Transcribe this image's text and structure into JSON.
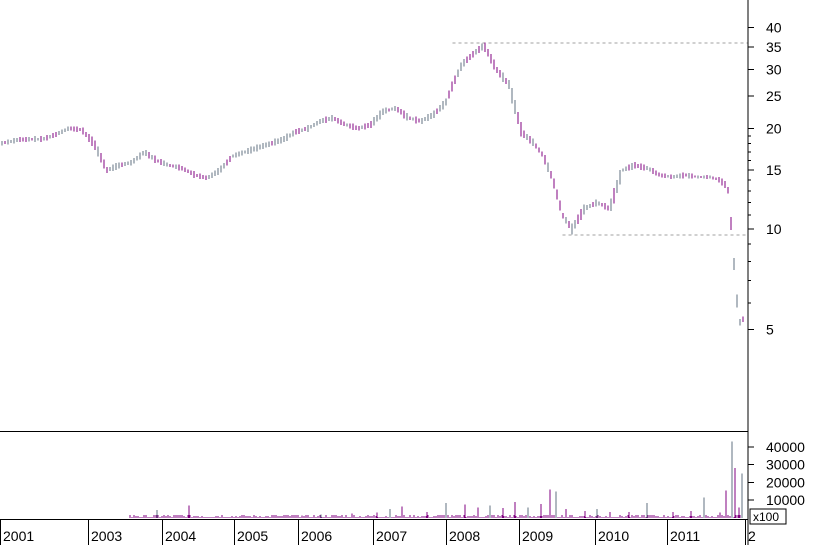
{
  "chart_data": [
    {
      "type": "line",
      "panel": "price",
      "style": "ohlc",
      "y_scale": "log",
      "ylim": [
        4.3,
        43
      ],
      "y_ticks": [
        5,
        10,
        15,
        20,
        25,
        30,
        35,
        40
      ],
      "y_tick_labels": [
        "5",
        "10",
        "15",
        "20",
        "25",
        "30",
        "35",
        "40"
      ],
      "x_tick_labels": [
        "2001",
        "2003",
        "2004",
        "2005",
        "2006",
        "2007",
        "2008",
        "2009",
        "2010",
        "2011",
        "2"
      ],
      "x": [
        2000.0,
        2000.3,
        2000.7,
        2000.9,
        2001.1,
        2001.3,
        2001.5,
        2001.7,
        2001.9,
        2002.1,
        2002.3,
        2002.5,
        2002.7,
        2002.9,
        2003.1,
        2003.3,
        2003.5,
        2003.7,
        2003.9,
        2004.1,
        2004.3,
        2004.5,
        2004.7,
        2004.9,
        2005.1,
        2005.3,
        2005.5,
        2005.7,
        2005.9,
        2006.1,
        2006.3,
        2006.5,
        2006.7,
        2006.9,
        2007.1,
        2007.2,
        2007.35,
        2007.5,
        2007.7,
        2007.9,
        2008.1,
        2008.3,
        2008.5,
        2008.65,
        2008.8,
        2008.95,
        2009.1,
        2009.3,
        2009.5,
        2009.7,
        2009.9,
        2010.1,
        2010.3,
        2010.5,
        2010.7,
        2010.9,
        2011.1,
        2011.3,
        2011.45,
        2011.55,
        2011.6,
        2011.65,
        2011.7,
        2011.75,
        2011.8,
        2011.85
      ],
      "series": [
        {
          "values": [
            18.0,
            18.5,
            18.6,
            19.2,
            20.0,
            19.8,
            18.0,
            15.0,
            15.5,
            15.8,
            17.0,
            16.0,
            15.5,
            15.2,
            14.5,
            14.2,
            15.0,
            16.5,
            17.0,
            17.5,
            18.0,
            18.5,
            19.5,
            20.0,
            21.0,
            21.5,
            20.5,
            20.0,
            20.5,
            22.5,
            23.0,
            21.5,
            21.0,
            22.0,
            24.0,
            27.0,
            31.0,
            33.0,
            35.5,
            30.0,
            27.0,
            19.5,
            18.0,
            16.5,
            14.0,
            11.0,
            10.0,
            11.5,
            12.0,
            11.5,
            15.0,
            15.5,
            15.2,
            14.5,
            14.3,
            14.5,
            14.3,
            14.3,
            14.0,
            13.5,
            12.8,
            9.0,
            7.0,
            5.3,
            5.2,
            5.6
          ]
        }
      ],
      "annotations": [
        {
          "type": "horizontal-dashed-line",
          "value": 36.0,
          "from_x": 2007.2
        },
        {
          "type": "horizontal-dashed-line",
          "value": 9.6,
          "from_x": 2008.95
        }
      ]
    },
    {
      "type": "bar",
      "panel": "volume",
      "ylim": [
        0,
        45000
      ],
      "y_ticks": [
        10000,
        20000,
        30000,
        40000
      ],
      "y_tick_labels": [
        "10000",
        "20000",
        "30000",
        "40000"
      ],
      "y_multiplier_label": "x100",
      "x": [
        2002.5,
        2003.0,
        2004.8,
        2005.1,
        2005.6,
        2006.0,
        2006.2,
        2006.4,
        2006.8,
        2007.1,
        2007.4,
        2007.6,
        2007.8,
        2008.0,
        2008.2,
        2008.4,
        2008.6,
        2008.75,
        2008.85,
        2009.0,
        2009.3,
        2009.5,
        2009.7,
        2010.0,
        2010.3,
        2010.7,
        2011.0,
        2011.2,
        2011.45,
        2011.55,
        2011.65,
        2011.7,
        2011.75,
        2011.8
      ],
      "values": [
        4500,
        7000,
        1500,
        2000,
        2500,
        3000,
        5000,
        6500,
        3500,
        8500,
        7500,
        6000,
        7000,
        5500,
        9000,
        6000,
        8000,
        16000,
        15000,
        5000,
        4000,
        5000,
        3500,
        3500,
        8500,
        3500,
        4000,
        11500,
        3000,
        15500,
        43000,
        28000,
        6000,
        25000
      ]
    }
  ]
}
